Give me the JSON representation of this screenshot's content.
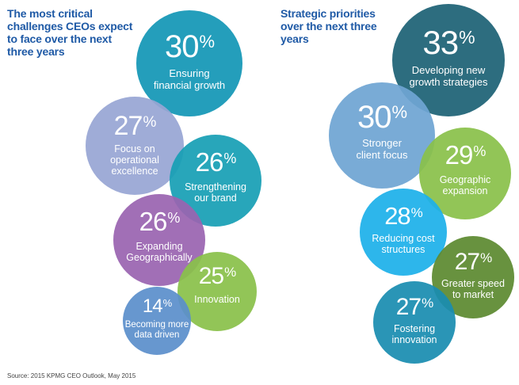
{
  "source": "Source: 2015 KPMG CEO Outlook, May 2015",
  "chart_data": [
    {
      "type": "bubble",
      "title": "The most critical challenges CEOs expect to face over the next three years",
      "unit": "%",
      "items": [
        {
          "label": "Ensuring financial growth",
          "value": 30,
          "color": "#1397b6"
        },
        {
          "label": "Focus on operational excellence",
          "value": 27,
          "color": "#98a6d4"
        },
        {
          "label": "Strengthening our brand",
          "value": 26,
          "color": "#189fb5"
        },
        {
          "label": "Expanding Geographically",
          "value": 26,
          "color": "#9a64b0"
        },
        {
          "label": "Innovation",
          "value": 25,
          "color": "#8ac14a"
        },
        {
          "label": "Becoming more data driven",
          "value": 14,
          "color": "#5b8fcb"
        }
      ]
    },
    {
      "type": "bubble",
      "title": "Strategic priorities over the next three years",
      "unit": "%",
      "items": [
        {
          "label": "Developing new growth strategies",
          "value": 33,
          "color": "#1d6275"
        },
        {
          "label": "Stronger client focus",
          "value": 30,
          "color": "#6fa5d3"
        },
        {
          "label": "Geographic expansion",
          "value": 29,
          "color": "#8ac14a"
        },
        {
          "label": "Reducing cost structures",
          "value": 28,
          "color": "#1db0ea"
        },
        {
          "label": "Greater speed to market",
          "value": 27,
          "color": "#5d8a30"
        },
        {
          "label": "Fostering innovation",
          "value": 27,
          "color": "#1a8db0"
        }
      ]
    }
  ]
}
